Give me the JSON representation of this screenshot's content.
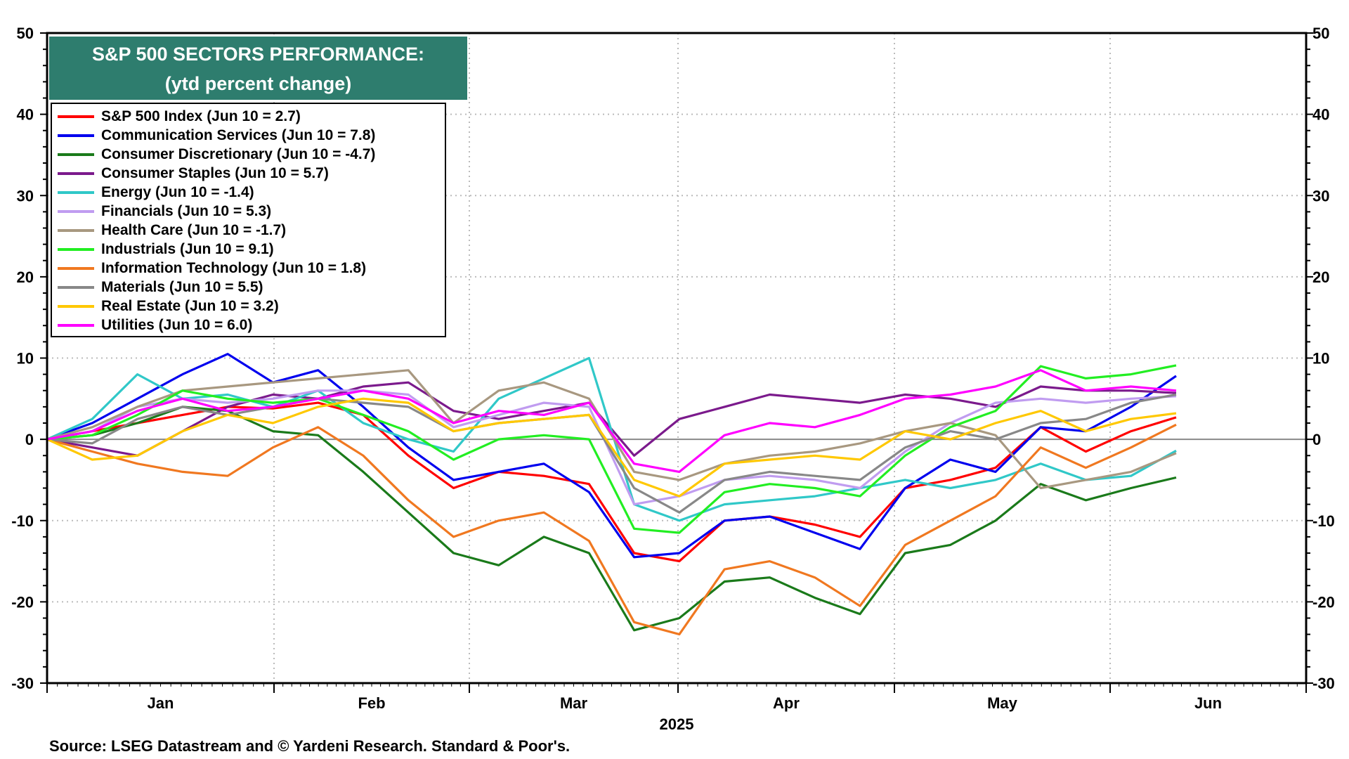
{
  "chart_data": {
    "type": "line",
    "title": "S&P 500 SECTORS PERFORMANCE:",
    "subtitle": "(ytd percent change)",
    "xlabel": "2025",
    "ylabel": "",
    "ylim": [
      -30,
      50
    ],
    "y_ticks": [
      50,
      40,
      30,
      20,
      10,
      0,
      -10,
      -20,
      -30
    ],
    "x_tick_labels": [
      "Jan",
      "Feb",
      "Mar",
      "Apr",
      "May",
      "Jun"
    ],
    "x": [
      "Jan 1",
      "Jan 8",
      "Jan 15",
      "Jan 22",
      "Jan 29",
      "Feb 5",
      "Feb 12",
      "Feb 19",
      "Feb 26",
      "Mar 5",
      "Mar 12",
      "Mar 19",
      "Mar 26",
      "Apr 2",
      "Apr 4",
      "Apr 8",
      "Apr 9",
      "Apr 16",
      "Apr 23",
      "Apr 30",
      "May 7",
      "May 14",
      "May 21",
      "May 28",
      "Jun 4",
      "Jun 10"
    ],
    "grid": true,
    "legend_position": "top-left",
    "series": [
      {
        "name": "S&P 500 Index (Jun 10 = 2.7)",
        "color": "#ff0000",
        "values": [
          0,
          1.0,
          2.0,
          3.0,
          4.0,
          3.8,
          4.5,
          3.0,
          -2.0,
          -6.0,
          -4.0,
          -4.5,
          -5.5,
          -14.0,
          -15.0,
          -10.0,
          -9.5,
          -10.5,
          -12.0,
          -6.0,
          -5.0,
          -3.5,
          1.5,
          -1.5,
          1.0,
          2.7
        ]
      },
      {
        "name": "Communication Services (Jun 10 = 7.8)",
        "color": "#0000ee",
        "values": [
          0,
          2.0,
          5.0,
          8.0,
          10.5,
          7.0,
          8.5,
          4.0,
          -1.0,
          -5.0,
          -4.0,
          -3.0,
          -6.5,
          -14.5,
          -14.0,
          -10.0,
          -9.5,
          -11.5,
          -13.5,
          -6.0,
          -2.5,
          -4.0,
          1.5,
          1.0,
          4.0,
          7.8
        ]
      },
      {
        "name": "Consumer Discretionary (Jun 10 = -4.7)",
        "color": "#1a7a1a",
        "values": [
          0,
          0.5,
          2.0,
          4.0,
          3.5,
          1.0,
          0.5,
          -4.0,
          -9.0,
          -14.0,
          -15.5,
          -12.0,
          -14.0,
          -23.5,
          -22.0,
          -17.5,
          -17.0,
          -19.5,
          -21.5,
          -14.0,
          -13.0,
          -10.0,
          -5.5,
          -7.5,
          -6.0,
          -4.7
        ]
      },
      {
        "name": "Consumer Staples (Jun 10 = 5.7)",
        "color": "#7b1a8c",
        "values": [
          0,
          -1.0,
          -2.0,
          1.0,
          4.0,
          5.5,
          5.0,
          6.5,
          7.0,
          3.5,
          2.5,
          3.5,
          4.5,
          -2.0,
          2.5,
          4.0,
          5.5,
          5.0,
          4.5,
          5.5,
          5.0,
          4.0,
          6.5,
          6.0,
          6.0,
          5.7
        ]
      },
      {
        "name": "Energy (Jun 10 = -1.4)",
        "color": "#30c8c8",
        "values": [
          0,
          2.5,
          8.0,
          5.0,
          5.5,
          4.0,
          6.0,
          2.0,
          0.0,
          -1.5,
          5.0,
          7.5,
          10.0,
          -8.0,
          -10.0,
          -8.0,
          -7.5,
          -7.0,
          -6.0,
          -5.0,
          -6.0,
          -5.0,
          -3.0,
          -5.0,
          -4.5,
          -1.4
        ]
      },
      {
        "name": "Financials (Jun 10 = 5.3)",
        "color": "#c09cf0",
        "values": [
          0,
          1.0,
          4.0,
          5.0,
          4.5,
          5.0,
          6.0,
          6.0,
          5.5,
          1.5,
          3.0,
          4.5,
          4.0,
          -8.0,
          -7.0,
          -5.0,
          -4.5,
          -5.0,
          -6.0,
          -1.5,
          2.0,
          4.5,
          5.0,
          4.5,
          5.0,
          5.3
        ]
      },
      {
        "name": "Health Care (Jun 10 = -1.7)",
        "color": "#a89880",
        "values": [
          0,
          1.5,
          4.0,
          6.0,
          6.5,
          7.0,
          7.5,
          8.0,
          8.5,
          2.0,
          6.0,
          7.0,
          5.0,
          -4.0,
          -5.0,
          -3.0,
          -2.0,
          -1.5,
          -0.5,
          1.0,
          2.0,
          0.5,
          -6.0,
          -5.0,
          -4.0,
          -1.7
        ]
      },
      {
        "name": "Industrials (Jun 10 = 9.1)",
        "color": "#22ee22",
        "values": [
          0,
          0.5,
          3.0,
          6.0,
          5.0,
          4.5,
          5.0,
          3.0,
          1.0,
          -2.5,
          0.0,
          0.5,
          0.0,
          -11.0,
          -11.5,
          -6.5,
          -5.5,
          -6.0,
          -7.0,
          -2.0,
          1.5,
          3.5,
          9.0,
          7.5,
          8.0,
          9.1
        ]
      },
      {
        "name": "Information Technology (Jun 10 = 1.8)",
        "color": "#f07820",
        "values": [
          0,
          -1.5,
          -3.0,
          -4.0,
          -4.5,
          -1.0,
          1.5,
          -2.0,
          -7.5,
          -12.0,
          -10.0,
          -9.0,
          -12.5,
          -22.5,
          -24.0,
          -16.0,
          -15.0,
          -17.0,
          -20.5,
          -13.0,
          -10.0,
          -7.0,
          -1.0,
          -3.5,
          -1.0,
          1.8
        ]
      },
      {
        "name": "Materials (Jun 10 = 5.5)",
        "color": "#888888",
        "values": [
          0,
          -0.5,
          2.5,
          4.0,
          3.0,
          4.0,
          5.0,
          4.5,
          4.0,
          1.0,
          2.0,
          2.5,
          3.0,
          -6.0,
          -9.0,
          -5.0,
          -4.0,
          -4.5,
          -5.0,
          -1.0,
          1.0,
          0.0,
          2.0,
          2.5,
          4.5,
          5.5
        ]
      },
      {
        "name": "Real Estate (Jun 10 = 3.2)",
        "color": "#ffc800",
        "values": [
          0,
          -2.5,
          -2.0,
          1.0,
          3.0,
          2.0,
          4.0,
          5.0,
          4.5,
          1.0,
          2.0,
          2.5,
          3.0,
          -5.0,
          -7.0,
          -3.0,
          -2.5,
          -2.0,
          -2.5,
          1.0,
          0.0,
          2.0,
          3.5,
          1.0,
          2.5,
          3.2
        ]
      },
      {
        "name": "Utilities (Jun 10 = 6.0)",
        "color": "#ff00ff",
        "values": [
          0,
          1.0,
          3.5,
          5.0,
          3.5,
          4.0,
          5.0,
          6.0,
          5.0,
          2.0,
          3.5,
          3.0,
          4.5,
          -3.0,
          -4.0,
          0.5,
          2.0,
          1.5,
          3.0,
          5.0,
          5.5,
          6.5,
          8.5,
          6.0,
          6.5,
          6.0
        ]
      }
    ]
  },
  "source": "Source: LSEG Datastream and © Yardeni Research. Standard & Poor's."
}
